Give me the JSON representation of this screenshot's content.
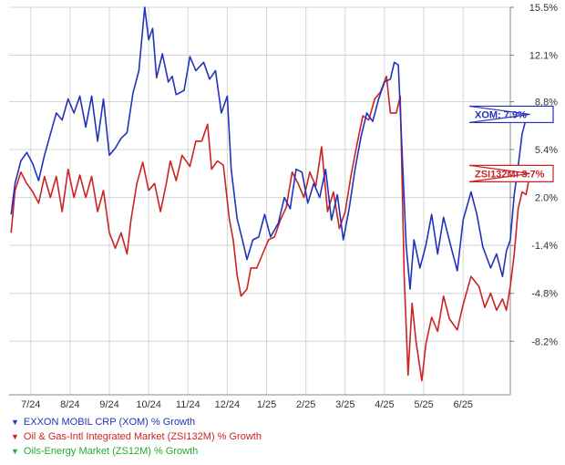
{
  "chart_data": {
    "type": "line",
    "title": "",
    "xlabel": "",
    "ylabel": "",
    "ylim": [
      -12.0,
      15.5
    ],
    "y_axis_side": "right",
    "y_ticks": [
      "15.5%",
      "12.1%",
      "8.8%",
      "5.4%",
      "2.0%",
      "-1.4%",
      "-4.8%",
      "-8.2%"
    ],
    "y_tick_values": [
      15.5,
      12.1,
      8.8,
      5.4,
      2.0,
      -1.4,
      -4.8,
      -8.2
    ],
    "x_ticks": [
      "7/24",
      "8/24",
      "9/24",
      "10/24",
      "11/24",
      "12/24",
      "1/25",
      "2/25",
      "3/25",
      "4/25",
      "5/25",
      "6/25"
    ],
    "x_tick_positions": [
      0.5,
      1.5,
      2.5,
      3.5,
      4.5,
      5.5,
      6.5,
      7.5,
      8.5,
      9.5,
      10.5,
      11.5
    ],
    "x_range": [
      -0.05,
      12.7
    ],
    "grid": true,
    "legend_position": "bottom",
    "series": [
      {
        "name": "EXXON MOBIL CRP (XOM) % Growth",
        "color": "#2233bb",
        "end_label": "XOM: 7.9%",
        "end_value": 7.9,
        "points": [
          [
            0.0,
            0.8
          ],
          [
            0.1,
            3.0
          ],
          [
            0.25,
            4.6
          ],
          [
            0.4,
            5.2
          ],
          [
            0.55,
            4.4
          ],
          [
            0.7,
            3.2
          ],
          [
            0.85,
            5.0
          ],
          [
            1.0,
            6.5
          ],
          [
            1.15,
            8.0
          ],
          [
            1.3,
            7.5
          ],
          [
            1.45,
            9.0
          ],
          [
            1.6,
            8.0
          ],
          [
            1.75,
            9.2
          ],
          [
            1.9,
            7.0
          ],
          [
            2.05,
            9.2
          ],
          [
            2.2,
            6.0
          ],
          [
            2.35,
            9.0
          ],
          [
            2.5,
            5.0
          ],
          [
            2.65,
            5.5
          ],
          [
            2.8,
            6.2
          ],
          [
            2.95,
            6.6
          ],
          [
            3.1,
            9.4
          ],
          [
            3.25,
            11.0
          ],
          [
            3.4,
            15.5
          ],
          [
            3.5,
            13.2
          ],
          [
            3.6,
            14.0
          ],
          [
            3.7,
            10.5
          ],
          [
            3.85,
            12.2
          ],
          [
            4.0,
            10.2
          ],
          [
            4.1,
            10.6
          ],
          [
            4.2,
            9.3
          ],
          [
            4.4,
            9.6
          ],
          [
            4.55,
            12.0
          ],
          [
            4.7,
            11.0
          ],
          [
            4.9,
            11.6
          ],
          [
            5.05,
            10.4
          ],
          [
            5.2,
            11.0
          ],
          [
            5.35,
            8.0
          ],
          [
            5.5,
            9.2
          ],
          [
            5.6,
            4.0
          ],
          [
            5.75,
            0.5
          ],
          [
            5.9,
            -1.2
          ],
          [
            6.0,
            -2.4
          ],
          [
            6.15,
            -1.0
          ],
          [
            6.3,
            -0.8
          ],
          [
            6.45,
            0.8
          ],
          [
            6.6,
            -0.8
          ],
          [
            6.8,
            0.2
          ],
          [
            6.95,
            2.0
          ],
          [
            7.1,
            1.2
          ],
          [
            7.25,
            4.0
          ],
          [
            7.4,
            3.8
          ],
          [
            7.55,
            1.6
          ],
          [
            7.7,
            3.0
          ],
          [
            7.85,
            2.0
          ],
          [
            8.0,
            4.0
          ],
          [
            8.15,
            0.4
          ],
          [
            8.3,
            2.2
          ],
          [
            8.45,
            -1.0
          ],
          [
            8.6,
            1.2
          ],
          [
            8.75,
            4.0
          ],
          [
            8.9,
            6.3
          ],
          [
            9.05,
            8.0
          ],
          [
            9.2,
            7.4
          ],
          [
            9.35,
            9.0
          ],
          [
            9.5,
            10.2
          ],
          [
            9.65,
            10.4
          ],
          [
            9.75,
            11.6
          ],
          [
            9.85,
            11.4
          ],
          [
            9.95,
            5.0
          ],
          [
            10.05,
            -1.4
          ],
          [
            10.15,
            -4.5
          ],
          [
            10.25,
            -1.0
          ],
          [
            10.4,
            -3.0
          ],
          [
            10.55,
            -1.4
          ],
          [
            10.7,
            0.8
          ],
          [
            10.85,
            -2.0
          ],
          [
            11.0,
            0.6
          ],
          [
            11.2,
            -1.6
          ],
          [
            11.35,
            -3.2
          ],
          [
            11.5,
            0.4
          ],
          [
            11.7,
            2.4
          ],
          [
            11.85,
            0.8
          ],
          [
            12.0,
            -1.5
          ],
          [
            12.2,
            -3.0
          ],
          [
            12.35,
            -2.0
          ],
          [
            12.5,
            -3.6
          ],
          [
            12.6,
            -1.8
          ],
          [
            12.7,
            -1.0
          ],
          [
            12.8,
            2.2
          ],
          [
            12.9,
            4.2
          ],
          [
            13.0,
            6.5
          ],
          [
            13.1,
            7.6
          ],
          [
            13.2,
            7.9
          ]
        ]
      },
      {
        "name": "Oil & Gas-Intl Integrated Market (ZSI132M) % Growth",
        "color": "#cc2222",
        "end_label": "ZSI132M: 3.7%",
        "end_value": 3.7,
        "points": [
          [
            0.0,
            -0.5
          ],
          [
            0.1,
            2.5
          ],
          [
            0.25,
            3.8
          ],
          [
            0.4,
            3.0
          ],
          [
            0.55,
            2.4
          ],
          [
            0.7,
            1.6
          ],
          [
            0.85,
            3.5
          ],
          [
            1.0,
            2.0
          ],
          [
            1.15,
            3.5
          ],
          [
            1.3,
            1.0
          ],
          [
            1.45,
            4.0
          ],
          [
            1.6,
            2.0
          ],
          [
            1.75,
            3.6
          ],
          [
            1.9,
            2.0
          ],
          [
            2.05,
            3.5
          ],
          [
            2.2,
            1.0
          ],
          [
            2.35,
            2.5
          ],
          [
            2.5,
            -0.5
          ],
          [
            2.65,
            -1.6
          ],
          [
            2.8,
            -0.5
          ],
          [
            2.95,
            -2.0
          ],
          [
            3.05,
            0.4
          ],
          [
            3.2,
            3.0
          ],
          [
            3.35,
            4.5
          ],
          [
            3.5,
            2.5
          ],
          [
            3.65,
            3.0
          ],
          [
            3.8,
            1.0
          ],
          [
            3.95,
            3.0
          ],
          [
            4.05,
            4.6
          ],
          [
            4.2,
            3.2
          ],
          [
            4.35,
            5.0
          ],
          [
            4.55,
            4.2
          ],
          [
            4.7,
            6.0
          ],
          [
            4.85,
            6.0
          ],
          [
            5.0,
            7.2
          ],
          [
            5.1,
            4.0
          ],
          [
            5.25,
            4.6
          ],
          [
            5.4,
            4.3
          ],
          [
            5.55,
            0.5
          ],
          [
            5.65,
            -1.0
          ],
          [
            5.75,
            -3.5
          ],
          [
            5.85,
            -5.0
          ],
          [
            6.0,
            -4.5
          ],
          [
            6.1,
            -3.0
          ],
          [
            6.25,
            -3.0
          ],
          [
            6.4,
            -2.0
          ],
          [
            6.55,
            -1.0
          ],
          [
            6.7,
            -0.8
          ],
          [
            6.85,
            0.4
          ],
          [
            7.0,
            1.3
          ],
          [
            7.15,
            3.8
          ],
          [
            7.3,
            3.0
          ],
          [
            7.45,
            2.0
          ],
          [
            7.6,
            3.8
          ],
          [
            7.75,
            2.8
          ],
          [
            7.9,
            5.6
          ],
          [
            8.05,
            1.0
          ],
          [
            8.2,
            2.4
          ],
          [
            8.35,
            -0.2
          ],
          [
            8.5,
            1.0
          ],
          [
            8.65,
            3.6
          ],
          [
            8.8,
            5.8
          ],
          [
            8.95,
            7.8
          ],
          [
            9.1,
            7.5
          ],
          [
            9.25,
            9.0
          ],
          [
            9.4,
            9.5
          ],
          [
            9.55,
            10.6
          ],
          [
            9.65,
            8.0
          ],
          [
            9.8,
            8.0
          ],
          [
            9.9,
            9.2
          ],
          [
            10.0,
            -3.5
          ],
          [
            10.1,
            -10.6
          ],
          [
            10.2,
            -5.5
          ],
          [
            10.3,
            -8.2
          ],
          [
            10.45,
            -11.0
          ],
          [
            10.55,
            -8.4
          ],
          [
            10.7,
            -6.5
          ],
          [
            10.85,
            -7.5
          ],
          [
            11.0,
            -5.0
          ],
          [
            11.15,
            -6.6
          ],
          [
            11.35,
            -7.4
          ],
          [
            11.5,
            -5.6
          ],
          [
            11.7,
            -3.6
          ],
          [
            11.9,
            -4.3
          ],
          [
            12.05,
            -5.8
          ],
          [
            12.2,
            -4.8
          ],
          [
            12.35,
            -6.0
          ],
          [
            12.5,
            -5.2
          ],
          [
            12.6,
            -6.0
          ],
          [
            12.7,
            -4.3
          ],
          [
            12.8,
            -2.0
          ],
          [
            12.9,
            1.2
          ],
          [
            13.0,
            2.4
          ],
          [
            13.1,
            2.2
          ],
          [
            13.2,
            3.7
          ]
        ]
      },
      {
        "name": "Oils-Energy Market (ZS12M) % Growth",
        "color": "#22aa33",
        "end_label": "",
        "points": []
      }
    ]
  }
}
